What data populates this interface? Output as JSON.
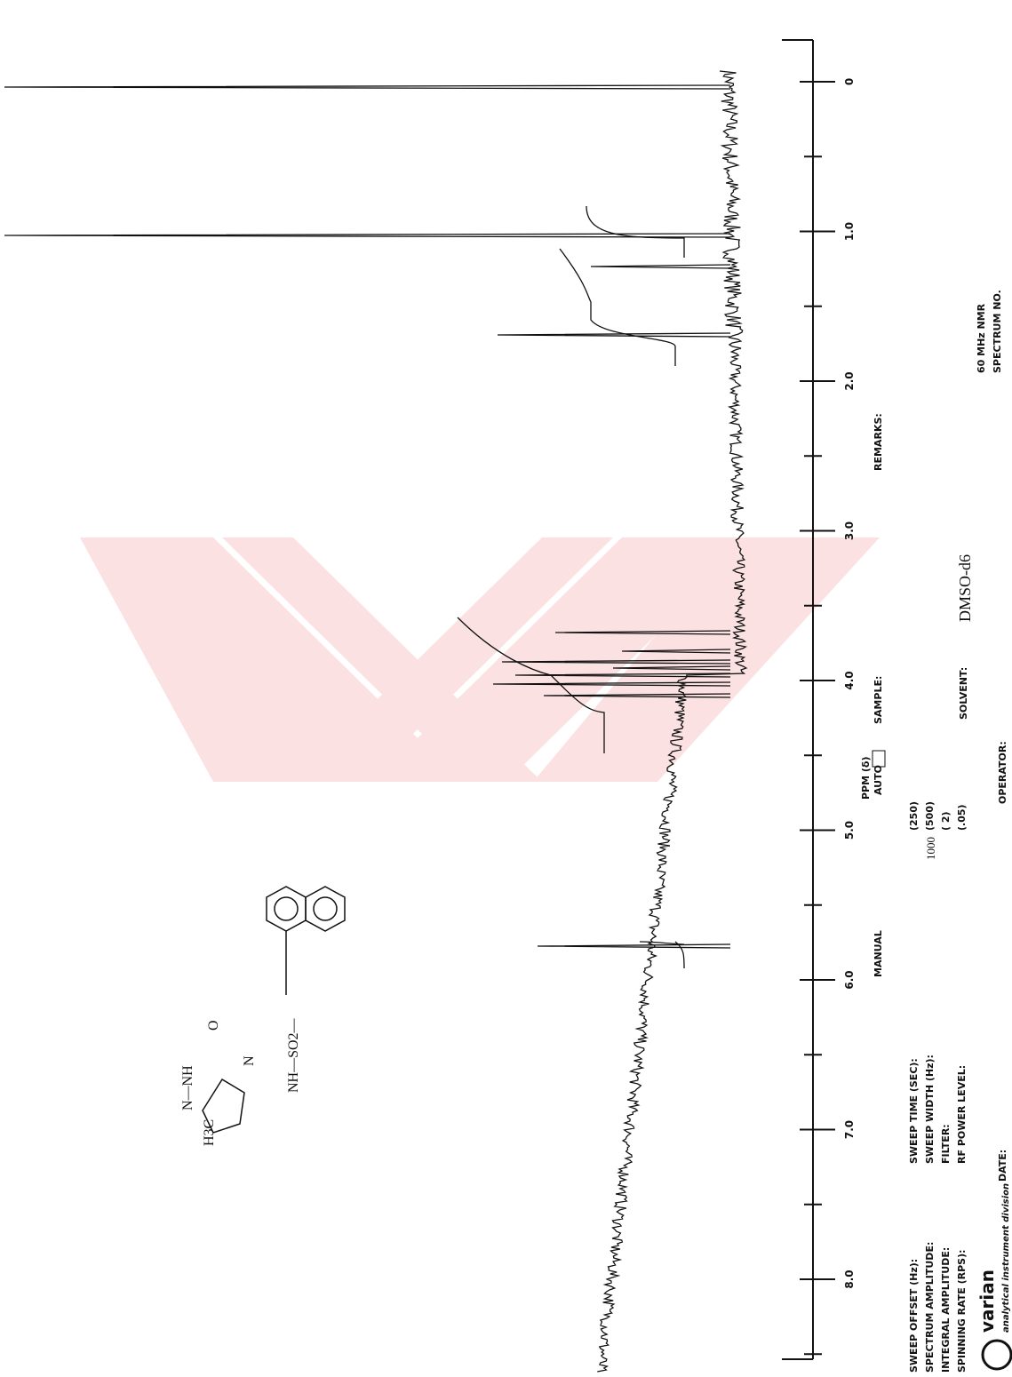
{
  "axis": {
    "label": "PPM (δ)",
    "ticks": [
      "0",
      "1.0",
      "2.0",
      "3.0",
      "4.0",
      "5.0",
      "6.0",
      "7.0",
      "8.0"
    ]
  },
  "form": {
    "sweep_offset": "SWEEP OFFSET (Hz):",
    "spectrum_amplitude": "SPECTRUM AMPLITUDE:",
    "integral_amplitude": "INTEGRAL AMPLITUDE:",
    "spinning_rate": "SPINNING RATE (RPS):",
    "manual": "MANUAL",
    "auto": "AUTO",
    "sweep_time": "SWEEP TIME (SEC):",
    "sweep_width": "SWEEP WIDTH (Hz):",
    "filter": "FILTER:",
    "rf_power": "RF POWER LEVEL:",
    "sweep_time_value": "(250)",
    "sweep_width_value": "(500)",
    "filter_value": "( 2)",
    "rf_power_value": "(.05)",
    "sweep_width_written": "1000",
    "sample": "SAMPLE:",
    "solvent": "SOLVENT:",
    "solvent_value": "DMSO-d6",
    "remarks": "REMARKS:",
    "date": "DATE:",
    "operator": "OPERATOR:",
    "instrument": "60 MHz NMR",
    "spectrum_no": "SPECTRUM NO.",
    "brand": "varian",
    "division": "analytical instrument division"
  },
  "structure": {
    "methyl": "H3C",
    "ring_top": "N—NH",
    "oxo": "O",
    "ring_n": "N",
    "linker": "NH—SO2—"
  }
}
